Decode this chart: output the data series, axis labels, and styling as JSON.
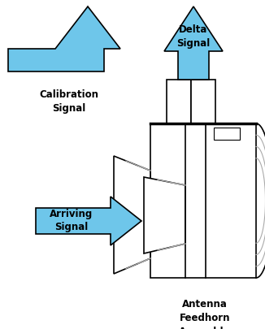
{
  "blue": "#6EC6EA",
  "black": "#000000",
  "gray": "#AAAAAA",
  "white": "#FFFFFF",
  "bg": "#FFFFFF",
  "labels": {
    "calibration": "Calibration\nSignal",
    "delta": "Delta\nSignal",
    "arriving": "Arriving\nSignal",
    "antenna": "Antenna\nFeedhorn\nAssembly"
  },
  "figsize": [
    3.26,
    4.05
  ],
  "dpi": 100
}
